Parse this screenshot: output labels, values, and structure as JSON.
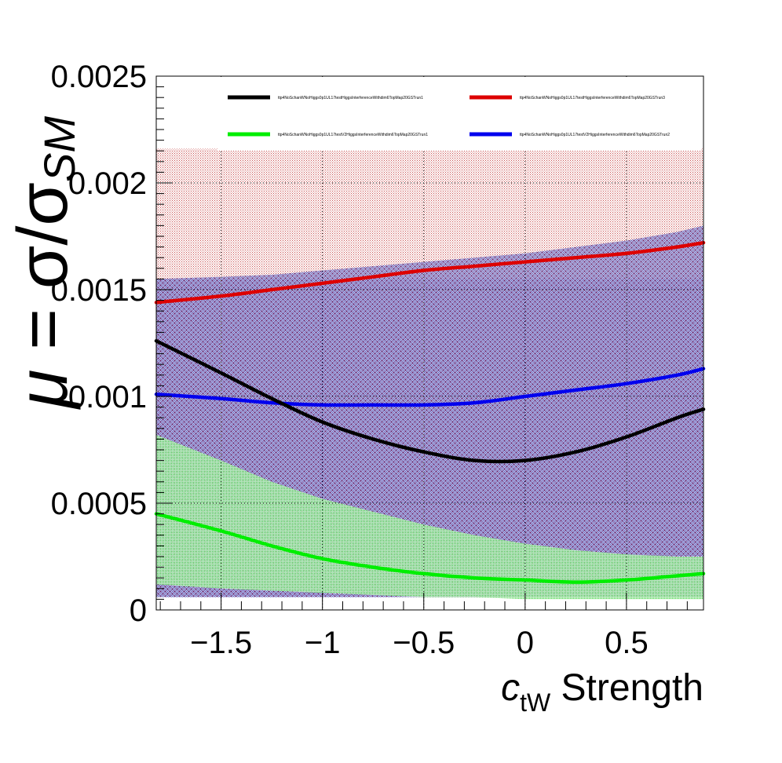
{
  "chart_data": {
    "type": "line",
    "title": "",
    "xlabel": {
      "main": "c",
      "sub": "tW",
      "rest": " Strength"
    },
    "ylabel": {
      "mu": "μ",
      "eq": " = σ/σ",
      "sub": "SM"
    },
    "xlim": [
      -1.82,
      0.88
    ],
    "ylim": [
      0,
      0.0025
    ],
    "x_ticks": [
      -1.5,
      -1,
      -0.5,
      0,
      0.5
    ],
    "x_tick_labels": [
      "−1.5",
      "−1",
      "−0.5",
      "0",
      "0.5"
    ],
    "y_ticks": [
      0,
      0.0005,
      0.001,
      0.0015,
      0.002,
      0.0025
    ],
    "y_tick_labels": [
      "0",
      "0.0005",
      "0.001",
      "0.0015",
      "0.002",
      "0.0025"
    ],
    "grid": true,
    "legend_position": "top",
    "x": [
      -1.82,
      -1.5,
      -1.25,
      -1.0,
      -0.75,
      -0.5,
      -0.25,
      0.0,
      0.25,
      0.5,
      0.75,
      0.88
    ],
    "series": [
      {
        "name": "ttp4NoSchanWNoHiggs0p1UL17testHiggsInterferenceWithdim6TopMap20GSTrun1",
        "color": "#000000",
        "values": [
          0.00126,
          0.00111,
          0.00099,
          0.00088,
          0.0008,
          0.00074,
          0.0007,
          0.0007,
          0.00074,
          0.00081,
          0.0009,
          0.00094
        ],
        "band_color": "#1c1c8c",
        "band_lower": [
          6e-05,
          6e-05,
          6e-05,
          6e-05,
          6e-05,
          6e-05,
          6e-05,
          6e-05,
          6e-05,
          6e-05,
          6e-05,
          6e-05
        ],
        "band_upper": [
          0.00155,
          0.00155,
          0.00155,
          0.00155,
          0.00155,
          0.00155,
          0.00155,
          0.00155,
          0.00155,
          0.00155,
          0.00155,
          0.00155
        ]
      },
      {
        "name": "ttp4NoSchanWNoHiggs0p1UL17testHiggsInterferenceWithdim6TopMap20GSTrun3",
        "color": "#dd0000",
        "values": [
          0.00144,
          0.00147,
          0.0015,
          0.00153,
          0.00156,
          0.00159,
          0.00161,
          0.00163,
          0.00165,
          0.00167,
          0.0017,
          0.00172
        ],
        "band_color": "#c03030",
        "band_lower": [
          6e-05,
          6e-05,
          6e-05,
          6e-05,
          6e-05,
          6e-05,
          6e-05,
          6e-05,
          6e-05,
          6e-05,
          6e-05,
          6e-05
        ],
        "band_upper": [
          0.00216,
          0.00216,
          0.00216,
          0.00216,
          0.00216,
          0.00216,
          0.00216,
          0.00216,
          0.00216,
          0.00216,
          0.00216,
          0.00216
        ]
      },
      {
        "name": "ttp4NoSchanWNoHiggs0p1UL17testV2HiggsInterferenceWithdim6TopMap20GSTrun1",
        "color": "#00ee00",
        "values": [
          0.00045,
          0.00037,
          0.0003,
          0.00024,
          0.0002,
          0.00017,
          0.00015,
          0.00014,
          0.00013,
          0.00014,
          0.00016,
          0.00017
        ],
        "band_color": "#22c022",
        "band_lower": [
          0.00012,
          0.0001,
          9e-05,
          8e-05,
          7e-05,
          6e-05,
          6e-05,
          5e-05,
          5e-05,
          5e-05,
          5e-05,
          5e-05
        ],
        "band_upper": [
          0.00082,
          0.0007,
          0.0006,
          0.00052,
          0.00046,
          0.0004,
          0.00035,
          0.00031,
          0.00028,
          0.00026,
          0.00025,
          0.00025
        ]
      },
      {
        "name": "ttp4NoSchanWNoHiggs0p1UL17testV2HiggsInterferenceWithdim6TopMap20GSTrun2",
        "color": "#0000ee",
        "values": [
          0.00101,
          0.00099,
          0.00097,
          0.00096,
          0.00096,
          0.00096,
          0.00097,
          0.001,
          0.00103,
          0.00106,
          0.0011,
          0.00113
        ],
        "band_color": "#3333cc",
        "band_lower": [
          6e-05,
          6e-05,
          6e-05,
          6e-05,
          6e-05,
          6e-05,
          6e-05,
          6e-05,
          6e-05,
          6e-05,
          6e-05,
          6e-05
        ],
        "band_upper": [
          0.00155,
          0.00156,
          0.00157,
          0.00159,
          0.00161,
          0.00163,
          0.00165,
          0.00167,
          0.0017,
          0.00173,
          0.00177,
          0.0018
        ]
      }
    ]
  }
}
